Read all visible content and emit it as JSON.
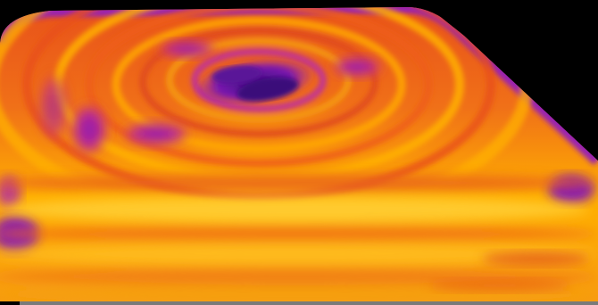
{
  "image": {
    "kind": "thermal-camera-image",
    "subject": "heated-surface",
    "palette": {
      "background": "#000000",
      "cold": "#3a0a7a",
      "cool": "#7a1ab0",
      "cool_mid": "#b025a8",
      "warm": "#e8501a",
      "warmer": "#f58a10",
      "hot": "#ffb000",
      "hottest": "#ffd23a",
      "bottom_strip": "#7a7a7a"
    }
  }
}
